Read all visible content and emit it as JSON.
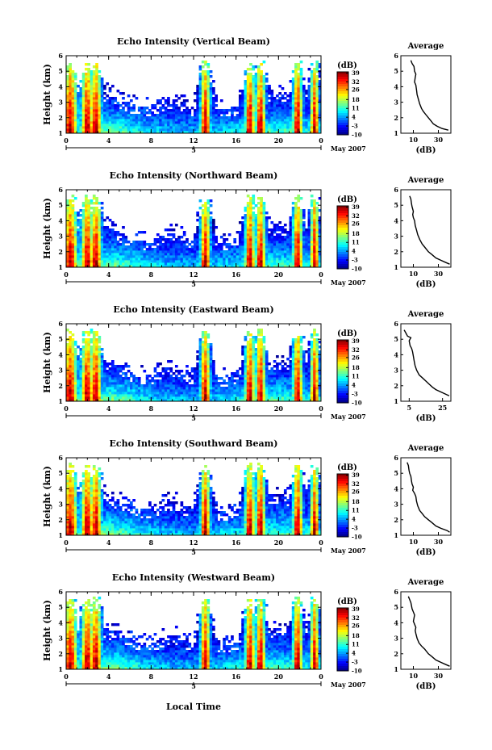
{
  "figure": {
    "xlabel": "Local Time",
    "date_label": "May 2007",
    "day_marker": "5",
    "colorbar_unit": "(dB)",
    "avg_title": "Average",
    "avg_xlabel": "(dB)"
  },
  "chart_data": [
    {
      "type": "heatmap",
      "title": "Echo Intensity (Vertical Beam)",
      "xlabel": "Local Time",
      "ylabel": "Height (km)",
      "x_ticks": [
        "0",
        "4",
        "8",
        "12",
        "16",
        "20",
        "0"
      ],
      "y_ticks": [
        "1",
        "2",
        "3",
        "4",
        "5",
        "6"
      ],
      "xlim": [
        0,
        24
      ],
      "ylim": [
        1,
        6
      ],
      "colorbar": {
        "label": "(dB)",
        "ticks": [
          "39",
          "32",
          "26",
          "18",
          "11",
          "4",
          "-3",
          "-10"
        ],
        "range": [
          -10,
          40
        ]
      },
      "profile": {
        "title": "Average",
        "xlabel": "(dB)",
        "x_ticks": [
          "10",
          "30"
        ],
        "xlim": [
          0,
          40
        ],
        "points": [
          [
            8,
            5.7
          ],
          [
            9,
            5.5
          ],
          [
            10.5,
            5.3
          ],
          [
            11,
            5.0
          ],
          [
            12,
            4.8
          ],
          [
            11.5,
            4.6
          ],
          [
            11,
            4.3
          ],
          [
            12,
            4.1
          ],
          [
            12.5,
            3.8
          ],
          [
            13,
            3.5
          ],
          [
            14,
            3.2
          ],
          [
            15,
            2.9
          ],
          [
            16.5,
            2.6
          ],
          [
            18,
            2.4
          ],
          [
            20,
            2.2
          ],
          [
            22,
            2.0
          ],
          [
            24,
            1.8
          ],
          [
            26,
            1.6
          ],
          [
            29,
            1.45
          ],
          [
            33,
            1.3
          ],
          [
            38,
            1.2
          ]
        ]
      }
    },
    {
      "type": "heatmap",
      "title": "Echo Intensity (Northward Beam)",
      "xlabel": "Local Time",
      "ylabel": "Height (km)",
      "x_ticks": [
        "0",
        "4",
        "8",
        "12",
        "16",
        "20",
        "0"
      ],
      "y_ticks": [
        "1",
        "2",
        "3",
        "4",
        "5",
        "6"
      ],
      "xlim": [
        0,
        24
      ],
      "ylim": [
        1,
        6
      ],
      "colorbar": {
        "label": "(dB)",
        "ticks": [
          "39",
          "32",
          "26",
          "18",
          "11",
          "4",
          "-3",
          "-10"
        ],
        "range": [
          -10,
          40
        ]
      },
      "profile": {
        "title": "Average",
        "xlabel": "(dB)",
        "x_ticks": [
          "10",
          "30"
        ],
        "xlim": [
          0,
          40
        ],
        "points": [
          [
            7,
            5.6
          ],
          [
            8,
            5.4
          ],
          [
            8.5,
            5.1
          ],
          [
            9,
            4.9
          ],
          [
            10,
            4.6
          ],
          [
            9.5,
            4.4
          ],
          [
            10,
            4.2
          ],
          [
            11,
            4.0
          ],
          [
            11.5,
            3.7
          ],
          [
            12.5,
            3.4
          ],
          [
            13.5,
            3.1
          ],
          [
            15,
            2.8
          ],
          [
            17,
            2.5
          ],
          [
            19,
            2.3
          ],
          [
            22,
            2.0
          ],
          [
            25,
            1.8
          ],
          [
            28,
            1.6
          ],
          [
            32,
            1.45
          ],
          [
            36,
            1.3
          ],
          [
            39,
            1.2
          ]
        ]
      }
    },
    {
      "type": "heatmap",
      "title": "Echo Intensity (Eastward Beam)",
      "xlabel": "Local Time",
      "ylabel": "Height (km)",
      "x_ticks": [
        "0",
        "4",
        "8",
        "12",
        "16",
        "20",
        "0"
      ],
      "y_ticks": [
        "1",
        "2",
        "3",
        "4",
        "5",
        "6"
      ],
      "xlim": [
        0,
        24
      ],
      "ylim": [
        1,
        6
      ],
      "colorbar": {
        "label": "(dB)",
        "ticks": [
          "39",
          "32",
          "26",
          "18",
          "11",
          "4",
          "-3",
          "-10"
        ],
        "range": [
          -10,
          40
        ]
      },
      "profile": {
        "title": "Average",
        "xlabel": "(dB)",
        "x_ticks": [
          "5",
          "25"
        ],
        "xlim": [
          0,
          30
        ],
        "points": [
          [
            2,
            5.6
          ],
          [
            3,
            5.4
          ],
          [
            4,
            5.2
          ],
          [
            6,
            5.1
          ],
          [
            5,
            4.9
          ],
          [
            5.5,
            4.6
          ],
          [
            6.5,
            4.4
          ],
          [
            7,
            4.2
          ],
          [
            7.5,
            3.9
          ],
          [
            8,
            3.6
          ],
          [
            8.5,
            3.3
          ],
          [
            9.5,
            3.0
          ],
          [
            11,
            2.7
          ],
          [
            13,
            2.5
          ],
          [
            15,
            2.3
          ],
          [
            17,
            2.1
          ],
          [
            19,
            1.9
          ],
          [
            21,
            1.75
          ],
          [
            24,
            1.6
          ],
          [
            27,
            1.45
          ],
          [
            29,
            1.35
          ]
        ]
      }
    },
    {
      "type": "heatmap",
      "title": "Echo Intensity (Southward Beam)",
      "xlabel": "Local Time",
      "ylabel": "Height (km)",
      "x_ticks": [
        "0",
        "4",
        "8",
        "12",
        "16",
        "20",
        "0"
      ],
      "y_ticks": [
        "1",
        "2",
        "3",
        "4",
        "5",
        "6"
      ],
      "xlim": [
        0,
        24
      ],
      "ylim": [
        1,
        6
      ],
      "colorbar": {
        "label": "(dB)",
        "ticks": [
          "39",
          "32",
          "26",
          "18",
          "11",
          "4",
          "-3",
          "-10"
        ],
        "range": [
          -10,
          40
        ]
      },
      "profile": {
        "title": "Average",
        "xlabel": "(dB)",
        "x_ticks": [
          "10",
          "30"
        ],
        "xlim": [
          0,
          40
        ],
        "points": [
          [
            5,
            5.7
          ],
          [
            6,
            5.5
          ],
          [
            6.5,
            5.2
          ],
          [
            7,
            5.0
          ],
          [
            8,
            4.8
          ],
          [
            8.5,
            4.5
          ],
          [
            9,
            4.3
          ],
          [
            10,
            4.1
          ],
          [
            9.5,
            3.9
          ],
          [
            11,
            3.7
          ],
          [
            12,
            3.5
          ],
          [
            12.5,
            3.2
          ],
          [
            13.5,
            2.9
          ],
          [
            15,
            2.6
          ],
          [
            17,
            2.4
          ],
          [
            19,
            2.2
          ],
          [
            22,
            2.0
          ],
          [
            25,
            1.8
          ],
          [
            28,
            1.6
          ],
          [
            32,
            1.45
          ],
          [
            37,
            1.3
          ],
          [
            39,
            1.2
          ]
        ]
      }
    },
    {
      "type": "heatmap",
      "title": "Echo Intensity (Westward Beam)",
      "xlabel": "Local Time",
      "ylabel": "Height (km)",
      "x_ticks": [
        "0",
        "4",
        "8",
        "12",
        "16",
        "20",
        "0"
      ],
      "y_ticks": [
        "1",
        "2",
        "3",
        "4",
        "5",
        "6"
      ],
      "xlim": [
        0,
        24
      ],
      "ylim": [
        1,
        6
      ],
      "colorbar": {
        "label": "(dB)",
        "ticks": [
          "39",
          "32",
          "26",
          "18",
          "11",
          "4",
          "-3",
          "-10"
        ],
        "range": [
          -10,
          40
        ]
      },
      "profile": {
        "title": "Average",
        "xlabel": "(dB)",
        "x_ticks": [
          "10",
          "30"
        ],
        "xlim": [
          0,
          40
        ],
        "points": [
          [
            6,
            5.7
          ],
          [
            7,
            5.5
          ],
          [
            8,
            5.3
          ],
          [
            8.5,
            5.1
          ],
          [
            9,
            4.9
          ],
          [
            10,
            4.7
          ],
          [
            11,
            4.5
          ],
          [
            10.5,
            4.3
          ],
          [
            10,
            4.1
          ],
          [
            11,
            3.9
          ],
          [
            12,
            3.7
          ],
          [
            11.5,
            3.5
          ],
          [
            12,
            3.3
          ],
          [
            13,
            3.0
          ],
          [
            14.5,
            2.7
          ],
          [
            16.5,
            2.5
          ],
          [
            19,
            2.3
          ],
          [
            22,
            2.0
          ],
          [
            25,
            1.8
          ],
          [
            28,
            1.6
          ],
          [
            32,
            1.45
          ],
          [
            36,
            1.3
          ],
          [
            39,
            1.2
          ]
        ]
      }
    }
  ]
}
